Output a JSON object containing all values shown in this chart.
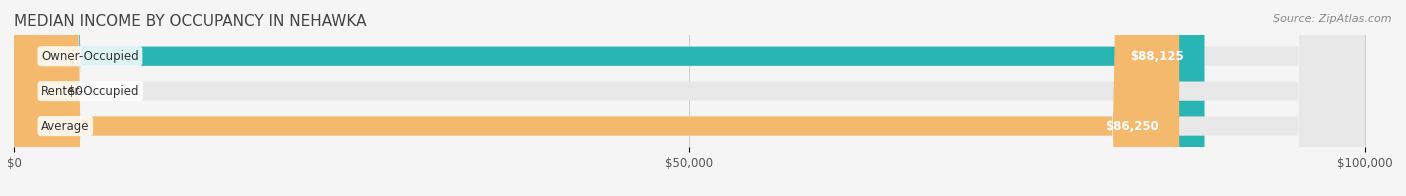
{
  "title": "MEDIAN INCOME BY OCCUPANCY IN NEHAWKA",
  "source": "Source: ZipAtlas.com",
  "categories": [
    "Owner-Occupied",
    "Renter-Occupied",
    "Average"
  ],
  "values": [
    88125,
    0,
    86250
  ],
  "labels": [
    "$88,125",
    "$0",
    "$86,250"
  ],
  "bar_colors": [
    "#2ab5b5",
    "#c9aed6",
    "#f5b96e"
  ],
  "bar_background": "#e8e8e8",
  "xlim": [
    0,
    100000
  ],
  "xticks": [
    0,
    50000,
    100000
  ],
  "xticklabels": [
    "$0",
    "$50,000",
    "$100,000"
  ],
  "title_fontsize": 11,
  "source_fontsize": 8,
  "label_fontsize": 8.5,
  "tick_fontsize": 8.5,
  "bar_height": 0.55,
  "background_color": "#f5f5f5"
}
